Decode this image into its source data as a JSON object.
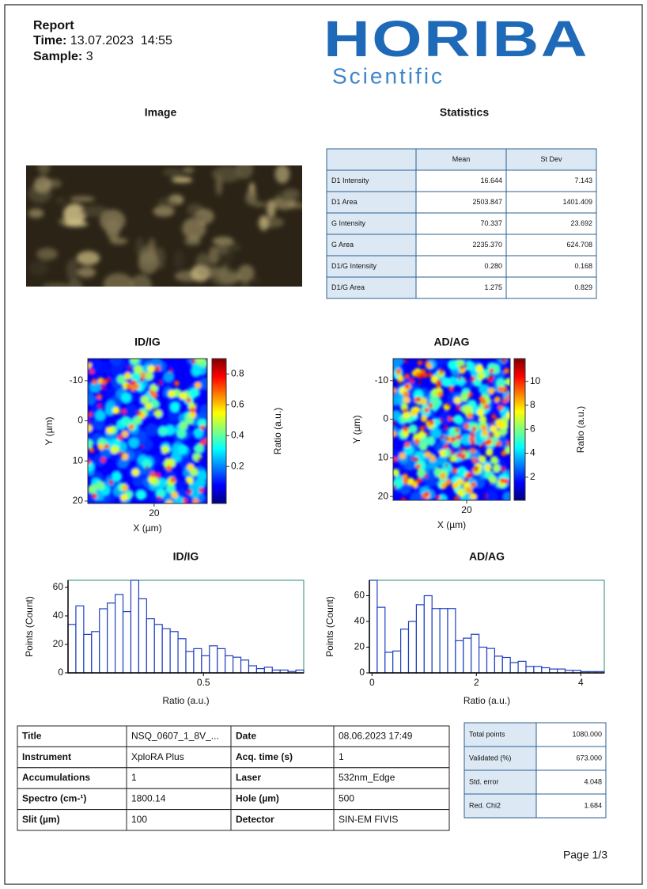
{
  "header": {
    "report": "Report",
    "time_label": "Time:",
    "time": "13.07.2023  14:55",
    "sample_label": "Sample:",
    "sample": "3",
    "logo": "HORIBA",
    "logo_sub": "Scientific"
  },
  "image": {
    "title": "Image"
  },
  "statistics": {
    "title": "Statistics",
    "columns": [
      "Mean",
      "St Dev"
    ],
    "rows": [
      [
        "D1 Intensity",
        "16.644",
        "7.143"
      ],
      [
        "D1 Area",
        "2503.847",
        "1401.409"
      ],
      [
        "G  Intensity",
        "70.337",
        "23.692"
      ],
      [
        "G  Area",
        "2235.370",
        "624.708"
      ],
      [
        "D1/G Intensity",
        "0.280",
        "0.168"
      ],
      [
        "D1/G Area",
        "1.275",
        "0.829"
      ]
    ]
  },
  "chart_data": [
    {
      "type": "heatmap",
      "title": "ID/IG",
      "xlabel": "X (µm)",
      "ylabel": "Y (µm)",
      "xlim": [
        3.5,
        33.2
      ],
      "xticks": [
        20
      ],
      "ylim": [
        -15.5,
        20.6
      ],
      "yticks": [
        -10,
        0,
        10,
        20
      ],
      "colorbar": {
        "label": "Ratio (a.u.)",
        "lim": [
          -0.04,
          0.9
        ],
        "ticks": [
          0.2,
          0.4,
          0.6,
          0.8
        ]
      }
    },
    {
      "type": "heatmap",
      "title": "AD/AG",
      "xlabel": "X (µm)",
      "ylabel": "Y (µm)",
      "xlim": [
        0.9,
        31.3
      ],
      "xticks": [
        20
      ],
      "ylim": [
        -15.7,
        21
      ],
      "yticks": [
        -10,
        0,
        10,
        20
      ],
      "colorbar": {
        "label": "Ratio (a.u.)",
        "lim": [
          0.07,
          11.9
        ],
        "ticks": [
          2,
          4,
          6,
          8,
          10
        ]
      }
    },
    {
      "type": "histogram",
      "title": "ID/IG",
      "xlabel": "Ratio (a.u.)",
      "ylabel": "Points (Count)",
      "color": "#1f3fbf",
      "bins": [
        0,
        0.029,
        0.058,
        0.087,
        0.116,
        0.145,
        0.174,
        0.203,
        0.232,
        0.261,
        0.29,
        0.319,
        0.348,
        0.377,
        0.406,
        0.435,
        0.464,
        0.493,
        0.522,
        0.551,
        0.58,
        0.609,
        0.638,
        0.667,
        0.696,
        0.725,
        0.754,
        0.783,
        0.812,
        0.841,
        0.87
      ],
      "values": [
        34,
        47,
        27,
        29,
        45,
        49,
        55,
        43,
        65,
        52,
        38,
        34,
        31,
        29,
        24,
        15,
        17,
        12,
        19,
        17,
        12,
        11,
        9,
        5,
        3,
        4,
        2,
        2,
        1,
        2
      ],
      "xlim": [
        0,
        0.87
      ],
      "xticks": [
        0.5
      ],
      "ylim": [
        0,
        65
      ],
      "yticks": [
        0,
        20,
        40,
        60
      ]
    },
    {
      "type": "histogram",
      "title": "AD/AG",
      "xlabel": "Ratio (a.u.)",
      "ylabel": "Points (Count)",
      "color": "#1f3fbf",
      "bins": [
        -0.05,
        0.1,
        0.25,
        0.4,
        0.55,
        0.7,
        0.85,
        1,
        1.15,
        1.3,
        1.45,
        1.6,
        1.75,
        1.9,
        2.05,
        2.2,
        2.35,
        2.5,
        2.65,
        2.8,
        2.95,
        3.1,
        3.25,
        3.4,
        3.55,
        3.7,
        3.85,
        4,
        4.15,
        4.3,
        4.45
      ],
      "values": [
        72,
        51,
        16,
        17,
        34,
        40,
        53,
        60,
        50,
        50,
        50,
        25,
        27,
        30,
        20,
        19,
        13,
        12,
        8,
        9,
        5,
        5,
        4,
        3,
        3,
        2,
        2,
        1,
        1,
        1
      ],
      "xlim": [
        -0.05,
        4.45
      ],
      "xticks": [
        0,
        2,
        4
      ],
      "ylim": [
        0,
        72
      ],
      "yticks": [
        0,
        20,
        40,
        60
      ]
    }
  ],
  "acquisition": {
    "rows": [
      [
        "Title",
        "NSQ_0607_1_8V_...",
        "Date",
        "08.06.2023 17:49"
      ],
      [
        "Instrument",
        "XploRA Plus",
        "Acq. time (s)",
        "1"
      ],
      [
        "Accumulations",
        "1",
        "Laser",
        "532nm_Edge"
      ],
      [
        "Spectro (cm-¹)",
        "1800.14",
        "Hole (µm)",
        "500"
      ],
      [
        "Slit (µm)",
        "100",
        "Detector",
        "SIN-EM FIVIS"
      ]
    ]
  },
  "fit": {
    "rows": [
      [
        "Total points",
        "1080.000"
      ],
      [
        "Validated (%)",
        "673.000"
      ],
      [
        "Std. error",
        "4.048"
      ],
      [
        "Red. Chi2",
        "1.684"
      ]
    ]
  },
  "footer": {
    "page": "Page 1/3"
  }
}
